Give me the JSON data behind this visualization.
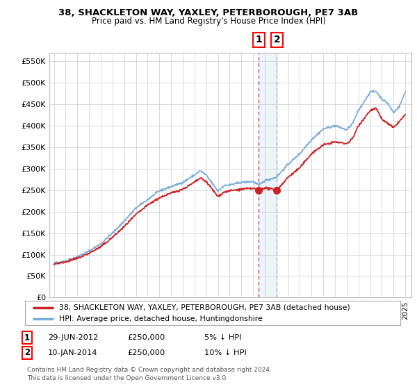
{
  "title": "38, SHACKLETON WAY, YAXLEY, PETERBOROUGH, PE7 3AB",
  "subtitle": "Price paid vs. HM Land Registry's House Price Index (HPI)",
  "ylim": [
    0,
    570000
  ],
  "yticks": [
    0,
    50000,
    100000,
    150000,
    200000,
    250000,
    300000,
    350000,
    400000,
    450000,
    500000,
    550000
  ],
  "ytick_labels": [
    "£0",
    "£50K",
    "£100K",
    "£150K",
    "£200K",
    "£250K",
    "£300K",
    "£350K",
    "£400K",
    "£450K",
    "£500K",
    "£550K"
  ],
  "hpi_color": "#7aaddc",
  "price_color": "#cc2222",
  "transaction1_date": 2012.495,
  "transaction2_date": 2014.03,
  "transaction1_price": 250000,
  "transaction2_price": 250000,
  "legend_label_red": "38, SHACKLETON WAY, YAXLEY, PETERBOROUGH, PE7 3AB (detached house)",
  "legend_label_blue": "HPI: Average price, detached house, Huntingdonshire",
  "background_color": "#ffffff",
  "grid_color": "#cccccc",
  "hpi_xknots": [
    1995,
    1996,
    1997,
    1998,
    1999,
    2000,
    2001,
    2002,
    2003,
    2004,
    2005,
    2006,
    2007,
    2007.5,
    2008,
    2009,
    2009.5,
    2010,
    2011,
    2012,
    2012.5,
    2013,
    2014,
    2015,
    2016,
    2017,
    2018,
    2019,
    2020,
    2020.5,
    2021,
    2022,
    2022.5,
    2023,
    2023.5,
    2024,
    2024.5,
    2025
  ],
  "hpi_yknots": [
    80000,
    85000,
    95000,
    108000,
    125000,
    150000,
    178000,
    208000,
    228000,
    248000,
    258000,
    268000,
    285000,
    295000,
    285000,
    248000,
    260000,
    262000,
    268000,
    270000,
    262000,
    272000,
    280000,
    310000,
    335000,
    368000,
    392000,
    400000,
    390000,
    405000,
    435000,
    478000,
    480000,
    462000,
    452000,
    430000,
    445000,
    478000
  ],
  "price_xknots": [
    1995,
    1996,
    1997,
    1998,
    1999,
    2000,
    2001,
    2002,
    2003,
    2004,
    2005,
    2006,
    2007,
    2007.5,
    2008,
    2009,
    2009.5,
    2010,
    2011,
    2012,
    2012.495,
    2013,
    2014.03,
    2015,
    2016,
    2017,
    2018,
    2019,
    2020,
    2020.5,
    2021,
    2022,
    2022.5,
    2023,
    2023.5,
    2024,
    2024.5,
    2025
  ],
  "price_yknots": [
    78000,
    83000,
    91000,
    103000,
    118000,
    140000,
    165000,
    193000,
    215000,
    232000,
    243000,
    252000,
    268000,
    278000,
    270000,
    235000,
    245000,
    248000,
    252000,
    254000,
    250000,
    255000,
    250000,
    280000,
    302000,
    335000,
    355000,
    362000,
    358000,
    370000,
    400000,
    435000,
    440000,
    415000,
    405000,
    395000,
    410000,
    425000
  ],
  "footnote": "Contains HM Land Registry data © Crown copyright and database right 2024.\nThis data is licensed under the Open Government Licence v3.0."
}
